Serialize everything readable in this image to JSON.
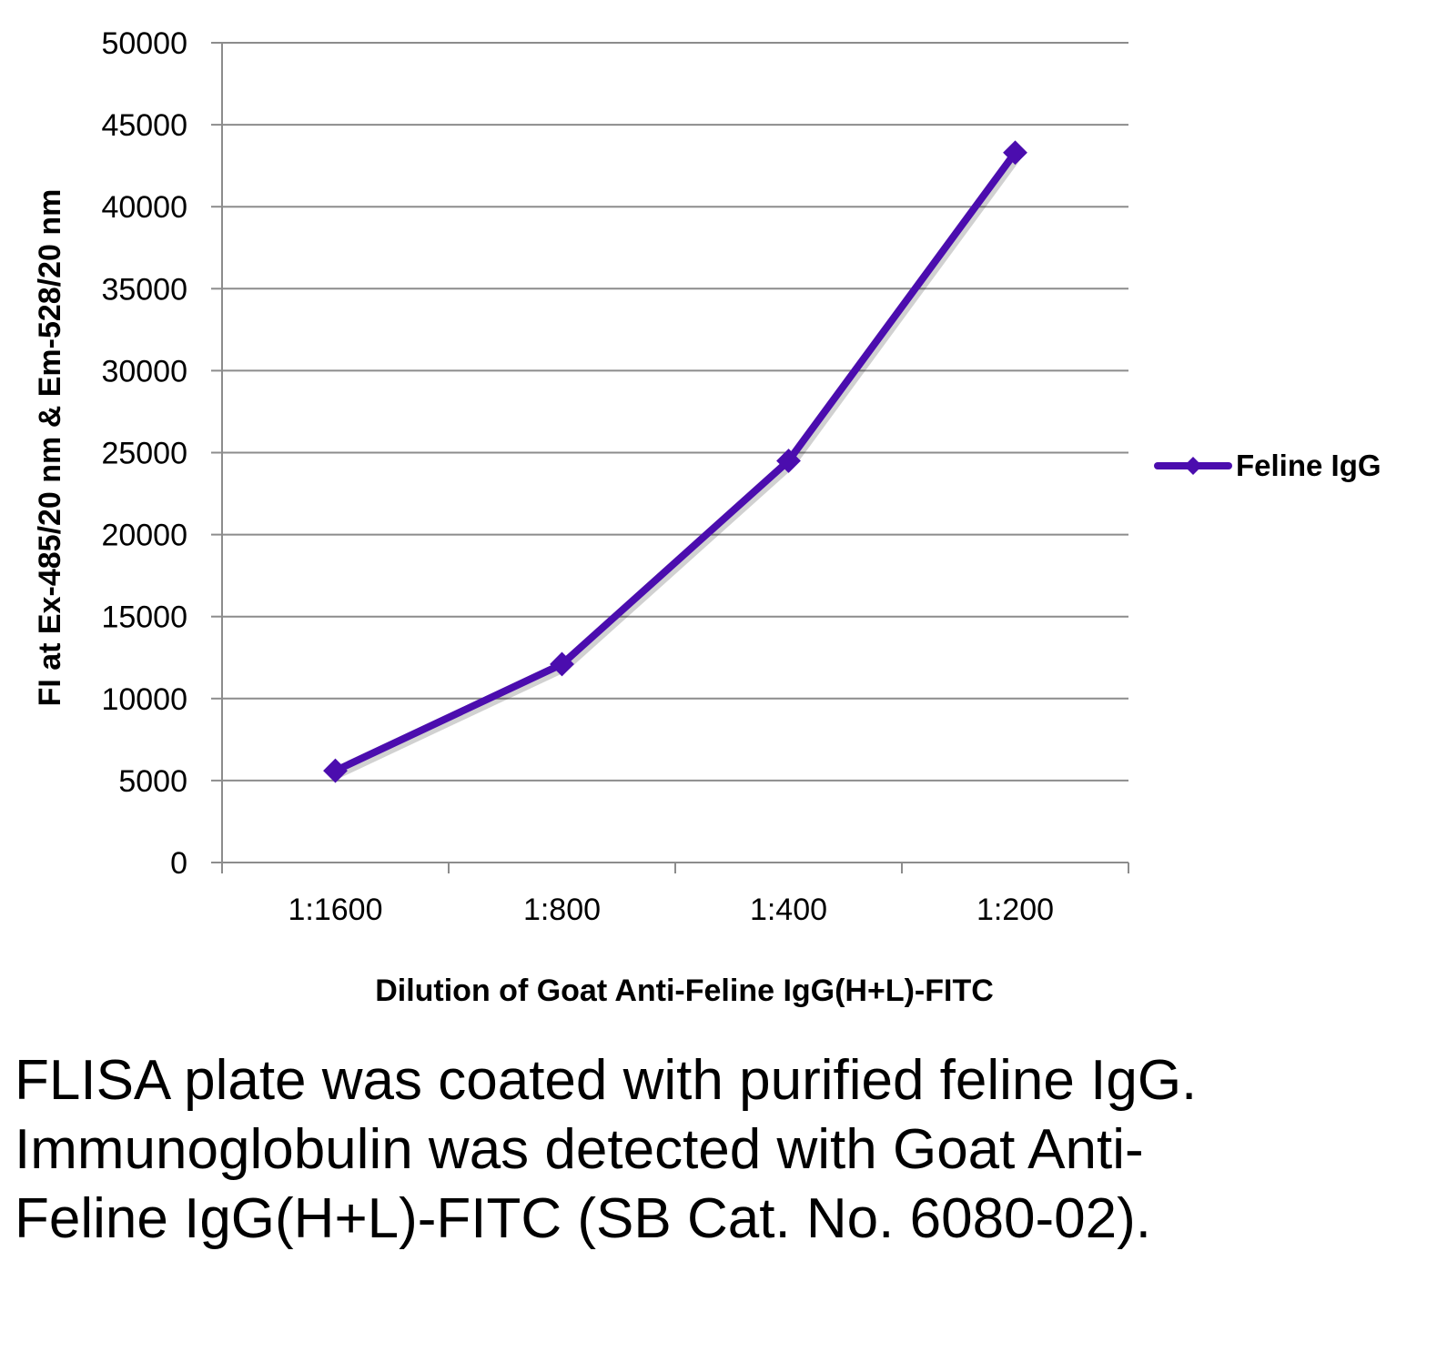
{
  "chart_data": {
    "type": "line",
    "categories": [
      "1:1600",
      "1:800",
      "1:400",
      "1:200"
    ],
    "series": [
      {
        "name": "Feline IgG",
        "values": [
          5600,
          12100,
          24500,
          43300
        ],
        "color": "#4B0DAE"
      }
    ],
    "xlabel": "Dilution of Goat Anti-Feline IgG(H+L)-FITC",
    "ylabel": "FI at Ex-485/20 nm & Em-528/20 nm",
    "ylim": [
      0,
      50000
    ],
    "yticks": [
      0,
      5000,
      10000,
      15000,
      20000,
      25000,
      30000,
      35000,
      40000,
      45000,
      50000
    ],
    "grid": true,
    "legend_position": "right"
  },
  "caption": "FLISA plate was coated with purified feline IgG.  Immunoglobulin was detected with Goat Anti-Feline IgG(H+L)-FITC (SB Cat. No. 6080-02)."
}
